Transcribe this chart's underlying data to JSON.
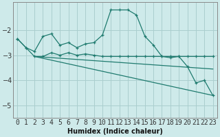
{
  "xlabel": "Humidex (Indice chaleur)",
  "background_color": "#ceeaea",
  "grid_color": "#aacece",
  "line_color": "#1e7a6e",
  "xlim": [
    -0.5,
    23.5
  ],
  "ylim": [
    -5.5,
    -0.9
  ],
  "yticks": [
    -5,
    -4,
    -3,
    -2
  ],
  "xtick_labels": [
    "0",
    "1",
    "2",
    "3",
    "4",
    "5",
    "6",
    "7",
    "8",
    "9",
    "10",
    "11",
    "12",
    "13",
    "14",
    "15",
    "16",
    "17",
    "18",
    "19",
    "20",
    "21",
    "22",
    "23"
  ],
  "line1_x": [
    0,
    1,
    2,
    3,
    4,
    5,
    6,
    7,
    8,
    9,
    10,
    11,
    12,
    13,
    14,
    15,
    16,
    17,
    18,
    19,
    20,
    21,
    22,
    23
  ],
  "line1_y": [
    -2.35,
    -2.7,
    -2.85,
    -2.25,
    -2.15,
    -2.6,
    -2.5,
    -2.7,
    -2.55,
    -2.5,
    -2.2,
    -1.2,
    -1.2,
    -1.2,
    -1.4,
    -2.25,
    -2.6,
    -3.05,
    -3.1,
    -3.05,
    -3.45,
    -4.1,
    -4.0,
    -4.6
  ],
  "line2_x": [
    0,
    1,
    2,
    3,
    4,
    5,
    6,
    7,
    8,
    9,
    10,
    11,
    12,
    13,
    14,
    15,
    16,
    17,
    18,
    19,
    20,
    21,
    22,
    23
  ],
  "line2_y": [
    -2.35,
    -2.7,
    -3.05,
    -3.05,
    -2.9,
    -3.0,
    -2.9,
    -3.0,
    -2.95,
    -3.0,
    -3.05,
    -3.05,
    -3.05,
    -3.05,
    -3.05,
    -3.05,
    -3.05,
    -3.05,
    -3.05,
    -3.05,
    -3.05,
    -3.05,
    -3.05,
    -3.05
  ],
  "line3_x": [
    2,
    23
  ],
  "line3_y": [
    -3.05,
    -3.55
  ],
  "line4_x": [
    2,
    23
  ],
  "line4_y": [
    -3.05,
    -4.6
  ]
}
